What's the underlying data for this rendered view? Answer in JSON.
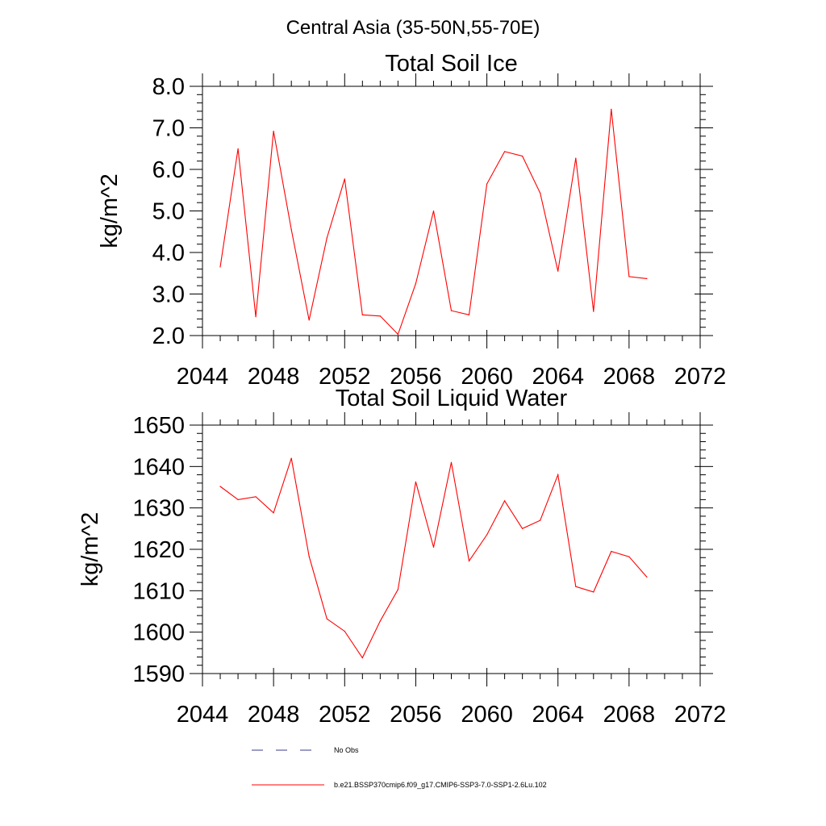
{
  "figure": {
    "main_title": "Central Asia (35-50N,55-70E)"
  },
  "legend": {
    "entries": [
      {
        "label": "No Obs",
        "color": "#3b3b8f",
        "style": "dashed"
      },
      {
        "label": "b.e21.BSSP370cmip6.f09_g17.CMIP6-SSP3-7.0-SSP1-2.6Lu.102",
        "color": "#ff0000",
        "style": "solid"
      }
    ]
  },
  "chart_data": [
    {
      "type": "line",
      "title": "Total Soil Ice",
      "xlabel": "",
      "ylabel": "kg/m^2",
      "xlim": [
        2044,
        2072
      ],
      "ylim": [
        2.0,
        8.0
      ],
      "xticks": [
        2044,
        2048,
        2052,
        2056,
        2060,
        2064,
        2068,
        2072
      ],
      "xtick_labels": [
        "2044",
        "2048",
        "2052",
        "2056",
        "2060",
        "2064",
        "2068",
        "2072"
      ],
      "yticks": [
        2.0,
        3.0,
        4.0,
        5.0,
        6.0,
        7.0,
        8.0
      ],
      "ytick_labels": [
        "2.0",
        "3.0",
        "4.0",
        "5.0",
        "6.0",
        "7.0",
        "8.0"
      ],
      "grid": false,
      "series": [
        {
          "color": "#ff0000",
          "x": [
            2045,
            2046,
            2047,
            2048,
            2049,
            2050,
            2051,
            2052,
            2053,
            2054,
            2055,
            2056,
            2057,
            2058,
            2059,
            2060,
            2061,
            2062,
            2063,
            2064,
            2065,
            2066,
            2067,
            2068,
            2069
          ],
          "values": [
            3.65,
            6.5,
            2.45,
            6.92,
            4.55,
            2.37,
            4.35,
            5.77,
            2.5,
            2.47,
            2.03,
            3.25,
            5.0,
            2.6,
            2.5,
            5.65,
            6.43,
            6.32,
            5.43,
            3.55,
            6.27,
            2.58,
            7.45,
            3.42,
            3.37
          ]
        }
      ]
    },
    {
      "type": "line",
      "title": "Total Soil Liquid Water",
      "xlabel": "",
      "ylabel": "kg/m^2",
      "xlim": [
        2044,
        2072
      ],
      "ylim": [
        1590,
        1650
      ],
      "xticks": [
        2044,
        2048,
        2052,
        2056,
        2060,
        2064,
        2068,
        2072
      ],
      "xtick_labels": [
        "2044",
        "2048",
        "2052",
        "2056",
        "2060",
        "2064",
        "2068",
        "2072"
      ],
      "yticks": [
        1590,
        1600,
        1610,
        1620,
        1630,
        1640,
        1650
      ],
      "ytick_labels": [
        "1590",
        "1600",
        "1610",
        "1620",
        "1630",
        "1640",
        "1650"
      ],
      "grid": false,
      "series": [
        {
          "color": "#ff0000",
          "x": [
            2045,
            2046,
            2047,
            2048,
            2049,
            2050,
            2051,
            2052,
            2053,
            2054,
            2055,
            2056,
            2057,
            2058,
            2059,
            2060,
            2061,
            2062,
            2063,
            2064,
            2065,
            2066,
            2067,
            2068,
            2069
          ],
          "values": [
            1635.2,
            1632.0,
            1632.7,
            1628.8,
            1642.0,
            1618.3,
            1603.2,
            1600.2,
            1593.8,
            1602.7,
            1610.3,
            1636.3,
            1620.5,
            1641.0,
            1617.2,
            1623.5,
            1631.7,
            1625.0,
            1627.0,
            1638.0,
            1611.0,
            1609.7,
            1619.5,
            1618.2,
            1613.3
          ]
        }
      ]
    }
  ]
}
